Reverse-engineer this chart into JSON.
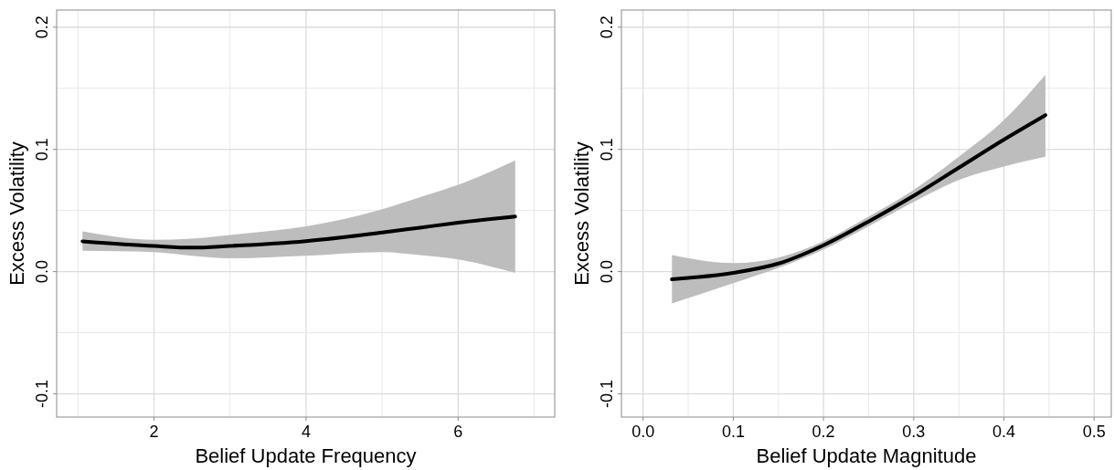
{
  "chart_data": [
    {
      "type": "line",
      "xlabel": "Belief Update Frequency",
      "ylabel": "Excess Volatility",
      "xlim": [
        0.72,
        7.27
      ],
      "ylim": [
        -0.119,
        0.214
      ],
      "xticks": [
        {
          "value": 1,
          "label": null
        },
        2,
        {
          "value": 3,
          "label": null
        },
        4,
        {
          "value": 5,
          "label": null
        },
        6,
        {
          "value": 7,
          "label": null
        }
      ],
      "yticks": [
        {
          "value": -0.1,
          "label": "-0.1"
        },
        {
          "value": -0.05,
          "label": null
        },
        {
          "value": 0,
          "label": "0.0"
        },
        {
          "value": 0.05,
          "label": null
        },
        {
          "value": 0.1,
          "label": "0.1"
        },
        {
          "value": 0.15,
          "label": null
        },
        {
          "value": 0.2,
          "label": "0.2"
        }
      ],
      "grid": true,
      "line_style": "solid",
      "series": [
        {
          "color": "#000000",
          "x": [
            1.06,
            2,
            2.5,
            3,
            4,
            5,
            5.5,
            6,
            6.75
          ],
          "values": [
            0.0248,
            0.021,
            0.0196,
            0.021,
            0.025,
            0.032,
            0.036,
            0.04,
            0.045
          ],
          "lower": [
            0.017,
            0.016,
            0.013,
            0.011,
            0.013,
            0.016,
            0.0135,
            0.01,
            -0.001
          ],
          "upper": [
            0.033,
            0.026,
            0.027,
            0.03,
            0.037,
            0.051,
            0.061,
            0.071,
            0.091
          ]
        }
      ]
    },
    {
      "type": "line",
      "xlabel": "Belief Update Magnitude",
      "ylabel": "Excess Volatility",
      "xlim": [
        -0.024,
        0.519
      ],
      "ylim": [
        -0.119,
        0.214
      ],
      "xticks": [
        {
          "value": 0,
          "label": "0.0"
        },
        {
          "value": 0.05,
          "label": null
        },
        0.1,
        {
          "value": 0.15,
          "label": null
        },
        0.2,
        {
          "value": 0.25,
          "label": null
        },
        0.3,
        {
          "value": 0.35,
          "label": null
        },
        0.4,
        {
          "value": 0.45,
          "label": null
        },
        0.5
      ],
      "yticks": [
        {
          "value": -0.1,
          "label": "-0.1"
        },
        {
          "value": -0.05,
          "label": null
        },
        {
          "value": 0,
          "label": "0.0"
        },
        {
          "value": 0.05,
          "label": null
        },
        {
          "value": 0.1,
          "label": "0.1"
        },
        {
          "value": 0.15,
          "label": null
        },
        {
          "value": 0.2,
          "label": "0.2"
        }
      ],
      "grid": true,
      "line_style": "solid",
      "series": [
        {
          "color": "#000000",
          "x": [
            0.032,
            0.1,
            0.15,
            0.2,
            0.25,
            0.3,
            0.35,
            0.4,
            0.446
          ],
          "values": [
            -0.0063,
            -0.001,
            0.0066,
            0.0216,
            0.041,
            0.062,
            0.085,
            0.108,
            0.128
          ],
          "lower": [
            -0.026,
            -0.0095,
            0.003,
            0.018,
            0.037,
            0.057,
            0.075,
            0.086,
            0.094
          ],
          "upper": [
            0.0135,
            0.007,
            0.0115,
            0.025,
            0.045,
            0.067,
            0.094,
            0.124,
            0.161
          ]
        }
      ]
    }
  ]
}
